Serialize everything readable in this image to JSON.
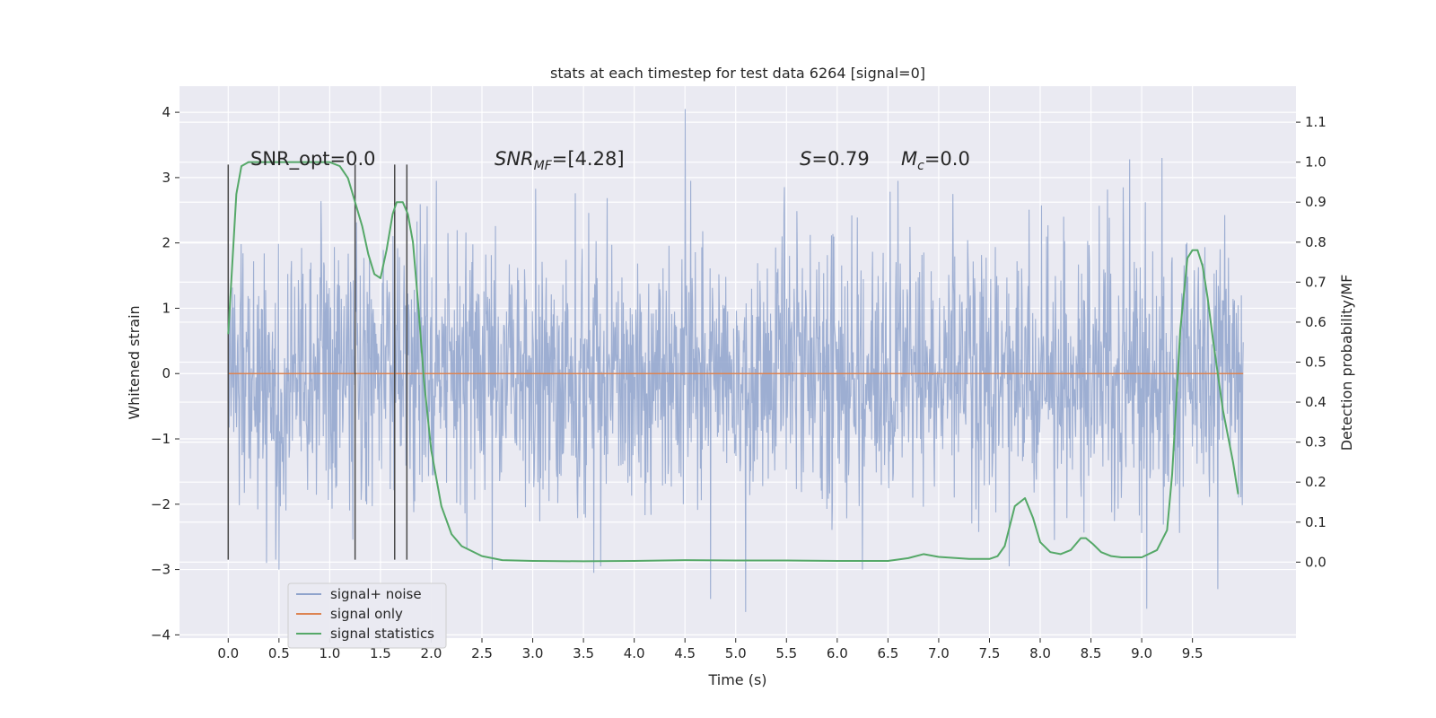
{
  "chart_data": {
    "type": "line",
    "title": "stats at each timestep for test data 6264 [signal=0]",
    "xlabel": "Time (s)",
    "ylabel": "Whitened strain",
    "y2label": "Detection probability/MF",
    "xlim": [
      -0.48,
      10.52
    ],
    "ylim": [
      -4.05,
      4.4
    ],
    "y2lim": [
      -0.19,
      1.19
    ],
    "x_ticks": [
      0.0,
      0.5,
      1.0,
      1.5,
      2.0,
      2.5,
      3.0,
      3.5,
      4.0,
      4.5,
      5.0,
      5.5,
      6.0,
      6.5,
      7.0,
      7.5,
      8.0,
      8.5,
      9.0,
      9.5
    ],
    "x_tick_labels": [
      "0.0",
      "0.5",
      "1.0",
      "1.5",
      "2.0",
      "2.5",
      "3.0",
      "3.5",
      "4.0",
      "4.5",
      "5.0",
      "5.5",
      "6.0",
      "6.5",
      "7.0",
      "7.5",
      "8.0",
      "8.5",
      "9.0",
      "9.5"
    ],
    "y_ticks": [
      4,
      3,
      2,
      1,
      0,
      -1,
      -2,
      -3,
      -4
    ],
    "y_tick_labels": [
      "4",
      "3",
      "2",
      "1",
      "0",
      "−1",
      "−2",
      "−3",
      "−4"
    ],
    "y2_ticks": [
      1.1,
      1.0,
      0.9,
      0.8,
      0.7,
      0.6,
      0.5,
      0.4,
      0.3,
      0.2,
      0.1,
      0.0
    ],
    "y2_tick_labels": [
      "1.1",
      "1.0",
      "0.9",
      "0.8",
      "0.7",
      "0.6",
      "0.5",
      "0.4",
      "0.3",
      "0.2",
      "0.1",
      "0.0"
    ],
    "grid": true,
    "legend": {
      "placement": "lower-left",
      "entries": [
        "signal+ noise",
        "signal only",
        "signal statistics"
      ]
    },
    "annotations": {
      "snr_opt": "SNR_opt=0.0",
      "snr_mf_main": "SNR",
      "snr_mf_sub": "MF",
      "snr_mf_value": "=[4.28]",
      "s_main": "S",
      "s_value": "=0.79",
      "mc_main": "M",
      "mc_sub": "c",
      "mc_value": "=0.0"
    },
    "vertical_markers": [
      {
        "x": 0.0,
        "ymin": -2.85,
        "ymax": 3.2
      },
      {
        "x": 1.25,
        "ymin": -2.85,
        "ymax": 3.2
      },
      {
        "x": 1.64,
        "ymin": -2.85,
        "ymax": 3.2
      },
      {
        "x": 1.76,
        "ymin": -2.85,
        "ymax": 3.2
      }
    ],
    "series": [
      {
        "name": "signal+ noise",
        "color": "#8fa3cc",
        "description": "whitened strain, noise only (approx. gaussian)",
        "x_range": [
          0.0,
          10.0
        ],
        "band_sigma": 1.0,
        "peaks": [
          {
            "x": 4.5,
            "y": 4.05
          },
          {
            "x": 8.88,
            "y": 3.28
          },
          {
            "x": 9.2,
            "y": 3.3
          },
          {
            "x": 0.5,
            "y": 3.05
          },
          {
            "x": 5.1,
            "y": -3.65
          },
          {
            "x": 9.05,
            "y": -3.6
          },
          {
            "x": 4.75,
            "y": -3.45
          },
          {
            "x": 9.75,
            "y": -3.3
          },
          {
            "x": 3.6,
            "y": -3.05
          },
          {
            "x": 6.25,
            "y": -3.0
          },
          {
            "x": 2.6,
            "y": -3.0
          },
          {
            "x": 0.5,
            "y": -3.0
          }
        ]
      },
      {
        "name": "signal only",
        "color": "#dd8452",
        "x": [
          0.0,
          10.0
        ],
        "y": [
          0.0,
          0.0
        ]
      },
      {
        "name": "signal statistics",
        "color": "#55a868",
        "axis": "right",
        "x": [
          0.0,
          0.08,
          0.13,
          0.2,
          0.3,
          0.5,
          0.8,
          1.0,
          1.1,
          1.18,
          1.25,
          1.32,
          1.38,
          1.44,
          1.5,
          1.56,
          1.62,
          1.66,
          1.72,
          1.77,
          1.82,
          1.87,
          1.93,
          2.0,
          2.1,
          2.2,
          2.3,
          2.5,
          2.7,
          3.0,
          3.5,
          4.0,
          4.5,
          5.0,
          5.5,
          6.0,
          6.5,
          6.7,
          6.85,
          7.0,
          7.3,
          7.5,
          7.58,
          7.65,
          7.75,
          7.85,
          7.93,
          8.0,
          8.1,
          8.2,
          8.3,
          8.4,
          8.45,
          8.52,
          8.6,
          8.7,
          8.8,
          9.0,
          9.15,
          9.25,
          9.3,
          9.38,
          9.45,
          9.5,
          9.55,
          9.6,
          9.65,
          9.7,
          9.8,
          9.9,
          9.95
        ],
        "y": [
          0.57,
          0.92,
          0.99,
          1.0,
          1.0,
          1.0,
          1.0,
          1.0,
          0.99,
          0.96,
          0.9,
          0.84,
          0.77,
          0.72,
          0.71,
          0.78,
          0.87,
          0.9,
          0.9,
          0.87,
          0.8,
          0.65,
          0.45,
          0.28,
          0.14,
          0.07,
          0.04,
          0.015,
          0.005,
          0.003,
          0.002,
          0.003,
          0.005,
          0.004,
          0.004,
          0.003,
          0.003,
          0.01,
          0.02,
          0.013,
          0.008,
          0.008,
          0.015,
          0.04,
          0.14,
          0.16,
          0.11,
          0.05,
          0.025,
          0.02,
          0.03,
          0.06,
          0.06,
          0.045,
          0.025,
          0.015,
          0.012,
          0.012,
          0.03,
          0.08,
          0.22,
          0.58,
          0.76,
          0.78,
          0.78,
          0.74,
          0.66,
          0.56,
          0.38,
          0.25,
          0.17
        ]
      }
    ]
  }
}
